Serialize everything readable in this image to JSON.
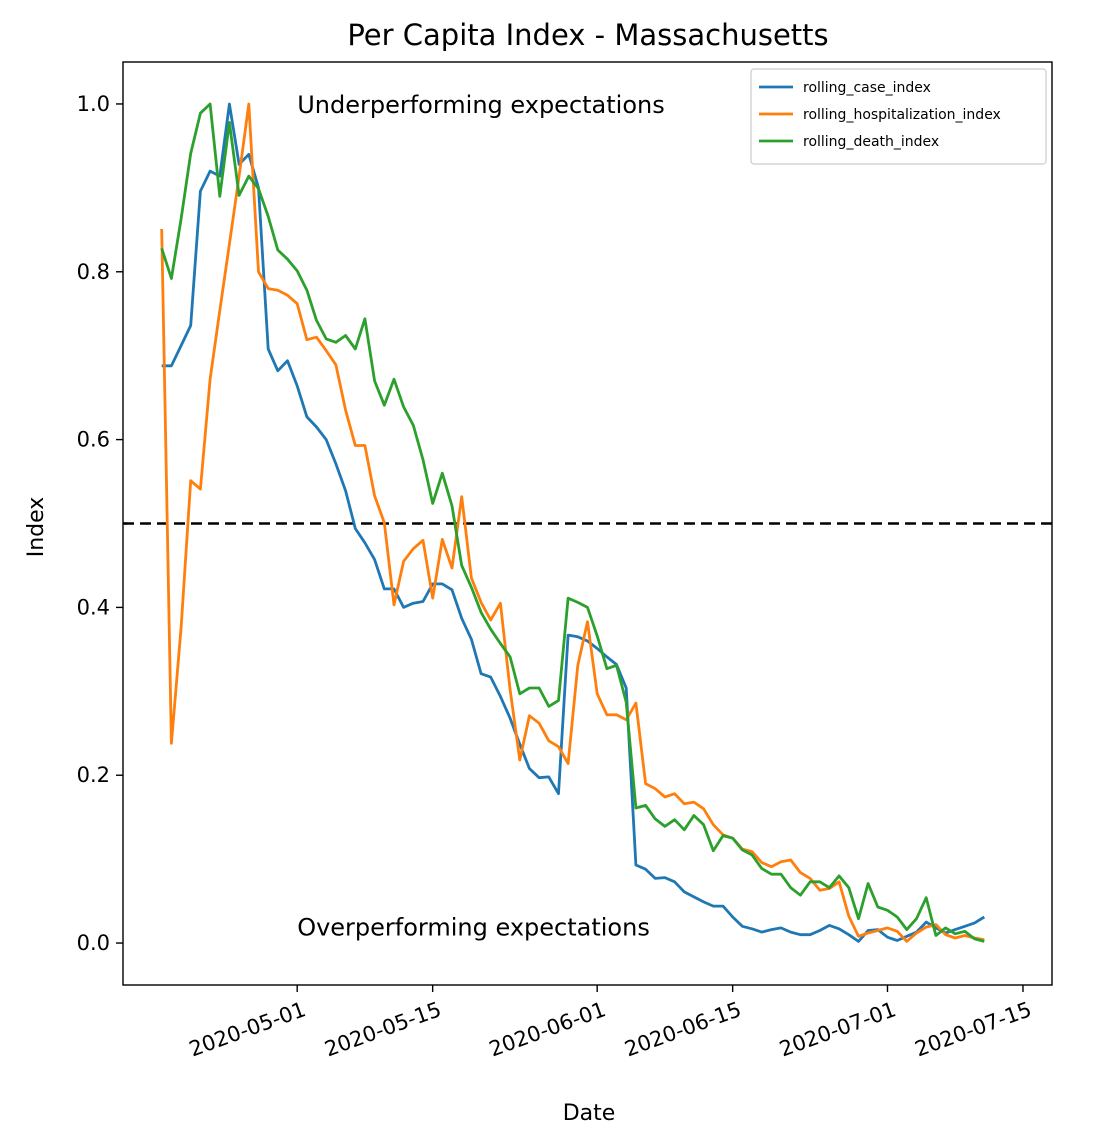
{
  "chart_data": {
    "type": "line",
    "title": "Per Capita Index - Massachusetts",
    "xlabel": "Date",
    "ylabel": "Index",
    "x_start": "2020-04-17",
    "xlim": [
      "2020-04-13",
      "2020-07-18"
    ],
    "ylim": [
      -0.05,
      1.05
    ],
    "x_ticks": [
      "2020-05-01",
      "2020-05-15",
      "2020-06-01",
      "2020-06-15",
      "2020-07-01",
      "2020-07-15"
    ],
    "y_ticks": [
      0.0,
      0.2,
      0.4,
      0.6,
      0.8,
      1.0
    ],
    "y_tick_labels": [
      "0.0",
      "0.2",
      "0.4",
      "0.6",
      "0.8",
      "1.0"
    ],
    "grid": false,
    "legend_position": "top-right",
    "threshold": 0.5,
    "annotations": [
      {
        "text": "Underperforming expectations",
        "x": "2020-05-01",
        "y": 1.0
      },
      {
        "text": "Overperforming expectations",
        "x": "2020-05-01",
        "y": 0.02
      }
    ],
    "series": [
      {
        "name": "rolling_case_index",
        "color": "#1f77b4",
        "values": [
          0.688,
          0.688,
          0.712,
          0.736,
          0.896,
          0.92,
          0.914,
          1.0,
          0.928,
          0.94,
          0.9,
          0.708,
          0.682,
          0.694,
          0.664,
          0.627,
          0.615,
          0.6,
          0.571,
          0.539,
          0.494,
          0.477,
          0.457,
          0.422,
          0.422,
          0.4,
          0.405,
          0.407,
          0.428,
          0.428,
          0.421,
          0.387,
          0.362,
          0.321,
          0.317,
          0.294,
          0.268,
          0.237,
          0.208,
          0.197,
          0.198,
          0.178,
          0.367,
          0.365,
          0.36,
          0.351,
          0.341,
          0.332,
          0.304,
          0.093,
          0.088,
          0.077,
          0.078,
          0.073,
          0.061,
          0.055,
          0.049,
          0.044,
          0.044,
          0.031,
          0.02,
          0.017,
          0.013,
          0.016,
          0.018,
          0.013,
          0.01,
          0.01,
          0.015,
          0.021,
          0.017,
          0.01,
          0.002,
          0.015,
          0.016,
          0.007,
          0.003,
          0.008,
          0.013,
          0.025,
          0.018,
          0.012,
          0.016,
          0.02,
          0.024,
          0.031
        ]
      },
      {
        "name": "rolling_hospitalization_index",
        "color": "#ff7f0e",
        "values": [
          0.851,
          0.238,
          0.376,
          0.551,
          0.541,
          0.672,
          0.754,
          0.833,
          0.914,
          1.0,
          0.8,
          0.78,
          0.778,
          0.772,
          0.762,
          0.719,
          0.722,
          0.706,
          0.689,
          0.635,
          0.593,
          0.593,
          0.533,
          0.501,
          0.403,
          0.455,
          0.47,
          0.48,
          0.411,
          0.481,
          0.447,
          0.532,
          0.435,
          0.406,
          0.385,
          0.405,
          0.302,
          0.218,
          0.271,
          0.262,
          0.241,
          0.234,
          0.214,
          0.331,
          0.383,
          0.297,
          0.272,
          0.272,
          0.266,
          0.286,
          0.19,
          0.184,
          0.174,
          0.178,
          0.166,
          0.168,
          0.16,
          0.141,
          0.129,
          0.125,
          0.112,
          0.109,
          0.096,
          0.091,
          0.097,
          0.099,
          0.084,
          0.077,
          0.063,
          0.065,
          0.073,
          0.032,
          0.008,
          0.012,
          0.015,
          0.018,
          0.014,
          0.002,
          0.012,
          0.019,
          0.022,
          0.01,
          0.006,
          0.009,
          0.006,
          0.004
        ]
      },
      {
        "name": "rolling_death_index",
        "color": "#2ca02c",
        "values": [
          0.828,
          0.792,
          0.863,
          0.941,
          0.989,
          1.0,
          0.89,
          0.978,
          0.891,
          0.914,
          0.899,
          0.866,
          0.826,
          0.815,
          0.801,
          0.778,
          0.742,
          0.72,
          0.716,
          0.724,
          0.708,
          0.744,
          0.67,
          0.641,
          0.672,
          0.639,
          0.617,
          0.576,
          0.524,
          0.56,
          0.521,
          0.45,
          0.424,
          0.394,
          0.374,
          0.357,
          0.341,
          0.297,
          0.304,
          0.304,
          0.282,
          0.289,
          0.411,
          0.406,
          0.4,
          0.366,
          0.327,
          0.331,
          0.287,
          0.161,
          0.164,
          0.148,
          0.139,
          0.147,
          0.135,
          0.152,
          0.141,
          0.11,
          0.128,
          0.125,
          0.111,
          0.105,
          0.089,
          0.082,
          0.082,
          0.066,
          0.057,
          0.073,
          0.073,
          0.066,
          0.08,
          0.066,
          0.029,
          0.071,
          0.043,
          0.039,
          0.031,
          0.016,
          0.029,
          0.054,
          0.009,
          0.018,
          0.011,
          0.014,
          0.005,
          0.002
        ]
      }
    ]
  }
}
